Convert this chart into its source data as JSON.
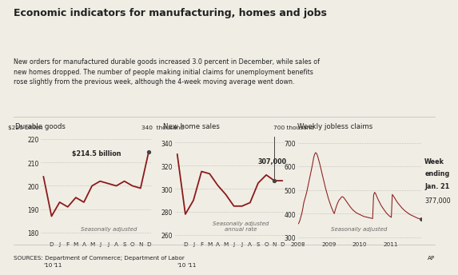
{
  "title": "Economic indicators for manufacturing, homes and jobs",
  "subtitle": "New orders for manufactured durable goods increased 3.0 percent in December, while sales of\nnew homes dropped. The number of people making initial claims for unemployment benefits\nrose slightly from the previous week, although the 4-week moving average went down.",
  "source": "SOURCES: Department of Commerce; Department of Labor",
  "ap": "AP",
  "line_color": "#8B1A1A",
  "dot_color": "#444444",
  "bg_color": "#f0ede4",
  "grid_color": "#999999",
  "text_color": "#222222",
  "note_color": "#666666",
  "panel1_title": "Durable goods",
  "panel1_ylabel_top": "$220 billion",
  "panel1_yticks": [
    180,
    190,
    200,
    210,
    220
  ],
  "panel1_ylim": [
    177,
    221
  ],
  "panel1_note": "Seasonally adjusted",
  "panel1_annotation": "$214.5 billion",
  "panel1_data": [
    204,
    187,
    193,
    191,
    195,
    193,
    200,
    202,
    201,
    200,
    202,
    200,
    199,
    214.5
  ],
  "panel2_title": "New home sales",
  "panel2_ylabel_top": "340  thousand",
  "panel2_yticks": [
    260,
    280,
    300,
    320,
    340
  ],
  "panel2_ylim": [
    256,
    345
  ],
  "panel2_note": "Seasonally adjusted\nannual rate",
  "panel2_annotation": "307,000",
  "panel2_data": [
    330,
    278,
    290,
    315,
    313,
    303,
    295,
    285,
    285,
    288,
    305,
    312,
    307,
    307
  ],
  "panel3_title": "Weekly jobless claims",
  "panel3_ylabel_top": "700 thousand",
  "panel3_yticks": [
    300,
    400,
    500,
    600,
    700
  ],
  "panel3_ylim": [
    290,
    725
  ],
  "panel3_note": "Seasonally adjusted",
  "panel3_annotation_line1": "Week",
  "panel3_annotation_line2": "ending",
  "panel3_annotation_line3": "Jan. 21",
  "panel3_annotation_line4": "377,000",
  "panel3_xlabel_ticks": [
    "2008",
    "2009",
    "2010",
    "2011"
  ],
  "panel3_data": [
    355,
    360,
    370,
    385,
    400,
    420,
    445,
    460,
    475,
    490,
    510,
    530,
    550,
    570,
    590,
    610,
    635,
    650,
    658,
    655,
    645,
    630,
    615,
    598,
    580,
    562,
    545,
    528,
    510,
    495,
    480,
    465,
    452,
    440,
    428,
    418,
    408,
    400,
    415,
    428,
    440,
    450,
    458,
    462,
    468,
    472,
    470,
    466,
    460,
    454,
    448,
    442,
    436,
    430,
    425,
    420,
    415,
    412,
    408,
    405,
    402,
    400,
    398,
    396,
    394,
    392,
    390,
    388,
    387,
    386,
    385,
    384,
    383,
    382,
    381,
    380,
    379,
    478,
    490,
    485,
    475,
    465,
    456,
    448,
    440,
    432,
    426,
    420,
    414,
    408,
    403,
    398,
    394,
    390,
    387,
    384,
    481,
    475,
    469,
    462,
    455,
    449,
    443,
    438,
    433,
    428,
    423,
    419,
    415,
    411,
    408,
    405,
    402,
    399,
    396,
    394,
    392,
    390,
    388,
    386,
    384,
    382,
    380,
    379,
    378,
    377
  ]
}
